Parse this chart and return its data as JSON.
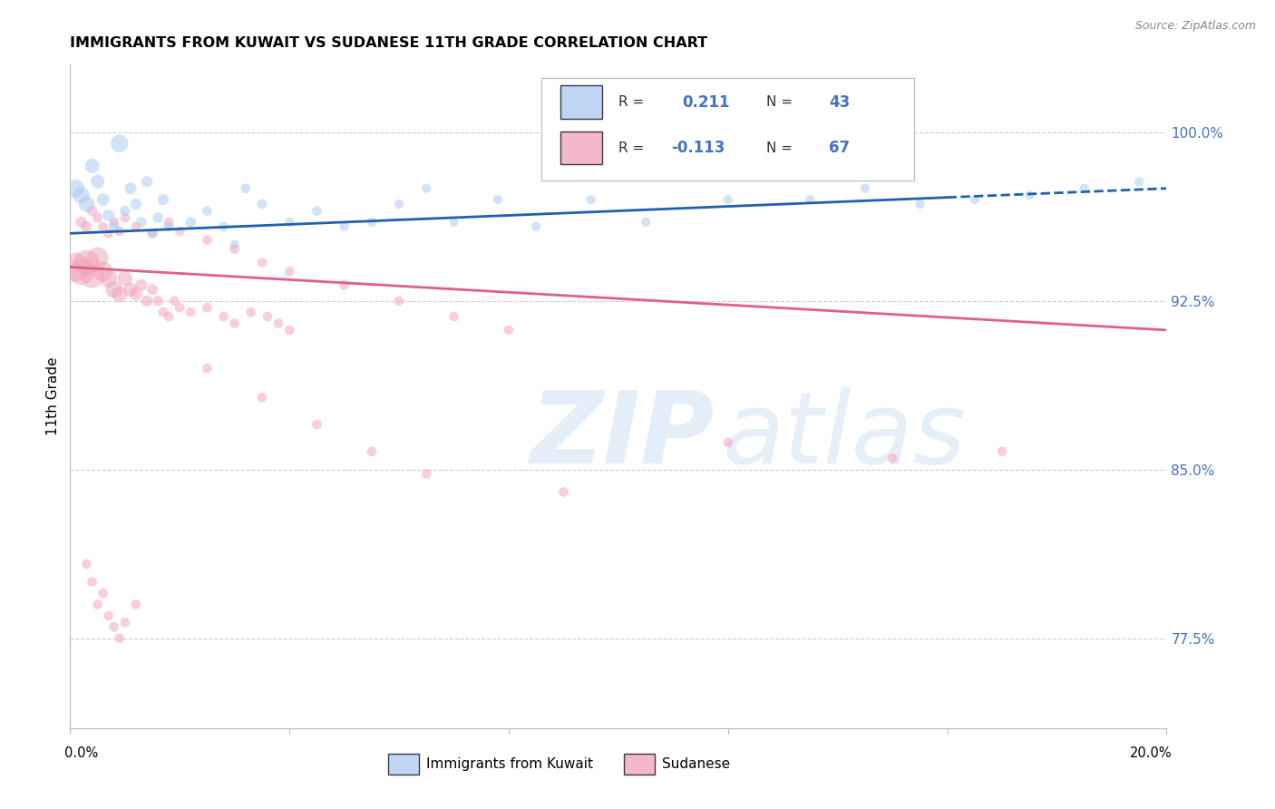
{
  "title": "IMMIGRANTS FROM KUWAIT VS SUDANESE 11TH GRADE CORRELATION CHART",
  "source": "Source: ZipAtlas.com",
  "ylabel": "11th Grade",
  "ytick_vals": [
    0.775,
    0.85,
    0.925,
    1.0
  ],
  "xmin": 0.0,
  "xmax": 0.2,
  "ymin": 0.735,
  "ymax": 1.03,
  "kuwait_R": 0.211,
  "kuwait_N": 43,
  "sudanese_R": -0.113,
  "sudanese_N": 67,
  "kuwait_color": "#a8c8f0",
  "sudanese_color": "#f0a0b8",
  "kuwait_line_color": "#2060b0",
  "sudanese_line_color": "#e06080",
  "kuwait_line_x0": 0.0,
  "kuwait_line_y0": 0.955,
  "kuwait_line_x1": 0.2,
  "kuwait_line_y1": 0.975,
  "kuwait_line_dash_start": 0.16,
  "sudanese_line_x0": 0.0,
  "sudanese_line_y0": 0.94,
  "sudanese_line_x1": 0.2,
  "sudanese_line_y1": 0.912,
  "kuwait_points_x": [
    0.001,
    0.002,
    0.003,
    0.004,
    0.005,
    0.006,
    0.007,
    0.008,
    0.009,
    0.01,
    0.011,
    0.012,
    0.013,
    0.014,
    0.015,
    0.016,
    0.017,
    0.018,
    0.022,
    0.025,
    0.028,
    0.03,
    0.032,
    0.035,
    0.04,
    0.045,
    0.05,
    0.055,
    0.06,
    0.065,
    0.07,
    0.078,
    0.085,
    0.095,
    0.105,
    0.12,
    0.135,
    0.145,
    0.155,
    0.165,
    0.175,
    0.185,
    0.195
  ],
  "kuwait_points_y": [
    0.975,
    0.972,
    0.968,
    0.985,
    0.978,
    0.97,
    0.963,
    0.958,
    0.995,
    0.965,
    0.975,
    0.968,
    0.96,
    0.978,
    0.955,
    0.962,
    0.97,
    0.958,
    0.96,
    0.965,
    0.958,
    0.95,
    0.975,
    0.968,
    0.96,
    0.965,
    0.958,
    0.96,
    0.968,
    0.975,
    0.96,
    0.97,
    0.958,
    0.97,
    0.96,
    0.97,
    0.97,
    0.975,
    0.968,
    0.97,
    0.972,
    0.975,
    0.978
  ],
  "kuwait_sizes": [
    200,
    180,
    160,
    140,
    120,
    100,
    90,
    80,
    200,
    70,
    90,
    80,
    70,
    80,
    60,
    70,
    80,
    60,
    70,
    60,
    60,
    55,
    60,
    60,
    55,
    60,
    55,
    55,
    55,
    55,
    55,
    55,
    55,
    55,
    55,
    55,
    55,
    55,
    55,
    55,
    55,
    55,
    55
  ],
  "sudanese_points_x": [
    0.001,
    0.002,
    0.003,
    0.004,
    0.005,
    0.006,
    0.007,
    0.008,
    0.009,
    0.01,
    0.011,
    0.012,
    0.013,
    0.014,
    0.015,
    0.016,
    0.017,
    0.018,
    0.019,
    0.02,
    0.022,
    0.025,
    0.028,
    0.03,
    0.033,
    0.036,
    0.038,
    0.04,
    0.002,
    0.003,
    0.004,
    0.005,
    0.006,
    0.007,
    0.008,
    0.009,
    0.01,
    0.012,
    0.015,
    0.018,
    0.02,
    0.025,
    0.03,
    0.035,
    0.04,
    0.05,
    0.06,
    0.07,
    0.08,
    0.025,
    0.035,
    0.045,
    0.055,
    0.065,
    0.09,
    0.12,
    0.15,
    0.17,
    0.003,
    0.004,
    0.005,
    0.006,
    0.007,
    0.008,
    0.009,
    0.01,
    0.012
  ],
  "sudanese_points_y": [
    0.94,
    0.938,
    0.942,
    0.936,
    0.944,
    0.938,
    0.935,
    0.93,
    0.928,
    0.935,
    0.93,
    0.928,
    0.932,
    0.925,
    0.93,
    0.925,
    0.92,
    0.918,
    0.925,
    0.922,
    0.92,
    0.922,
    0.918,
    0.915,
    0.92,
    0.918,
    0.915,
    0.912,
    0.96,
    0.958,
    0.965,
    0.962,
    0.958,
    0.955,
    0.96,
    0.956,
    0.962,
    0.958,
    0.955,
    0.96,
    0.956,
    0.952,
    0.948,
    0.942,
    0.938,
    0.932,
    0.925,
    0.918,
    0.912,
    0.895,
    0.882,
    0.87,
    0.858,
    0.848,
    0.84,
    0.862,
    0.855,
    0.858,
    0.808,
    0.8,
    0.79,
    0.795,
    0.785,
    0.78,
    0.775,
    0.782,
    0.79
  ],
  "sudanese_sizes": [
    500,
    450,
    400,
    350,
    300,
    250,
    200,
    180,
    160,
    140,
    120,
    100,
    90,
    80,
    75,
    70,
    65,
    60,
    60,
    60,
    60,
    60,
    60,
    60,
    60,
    60,
    60,
    60,
    80,
    75,
    70,
    65,
    60,
    60,
    60,
    60,
    60,
    60,
    60,
    60,
    60,
    60,
    60,
    60,
    60,
    60,
    60,
    60,
    60,
    60,
    60,
    60,
    60,
    60,
    60,
    60,
    60,
    60,
    60,
    60,
    60,
    60,
    60,
    60,
    60,
    60,
    60
  ],
  "legend_labels": [
    "Immigrants from Kuwait",
    "Sudanese"
  ],
  "grid_color": "#cccccc",
  "background_color": "#ffffff"
}
